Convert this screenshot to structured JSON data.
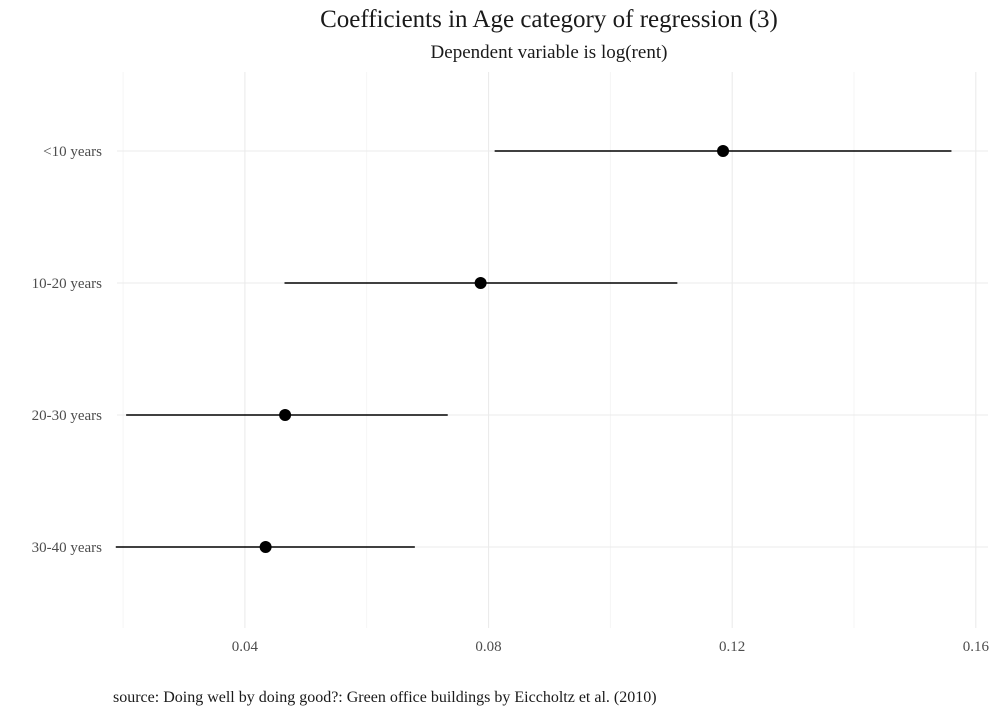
{
  "chart_data": {
    "type": "scatter",
    "title": "Coefficients in Age category of regression (3)",
    "subtitle": "Dependent variable is log(rent)",
    "caption": "source: Doing well by doing good?: Green office buildings by Eiccholtz et al. (2010)",
    "xlabel": "",
    "ylabel": "",
    "xlim": [
      0.019,
      0.162
    ],
    "x_ticks": [
      0.04,
      0.08,
      0.12,
      0.16
    ],
    "x_tick_labels": [
      "0.04",
      "0.08",
      "0.12",
      "0.16"
    ],
    "x_minor_ticks": [
      0.02,
      0.06,
      0.1,
      0.14
    ],
    "categories": [
      "<10 years",
      "10-20 years",
      "20-30 years",
      "30-40 years"
    ],
    "estimates": [
      0.1185,
      0.0787,
      0.0466,
      0.0434
    ],
    "ci_low": [
      0.081,
      0.0465,
      0.0205,
      0.0188
    ],
    "ci_high": [
      0.156,
      0.111,
      0.0733,
      0.0679
    ],
    "grid": true,
    "legend": "none",
    "colors": {
      "points": "#000000",
      "lines": "#000000",
      "grid": "#ebebeb"
    }
  }
}
